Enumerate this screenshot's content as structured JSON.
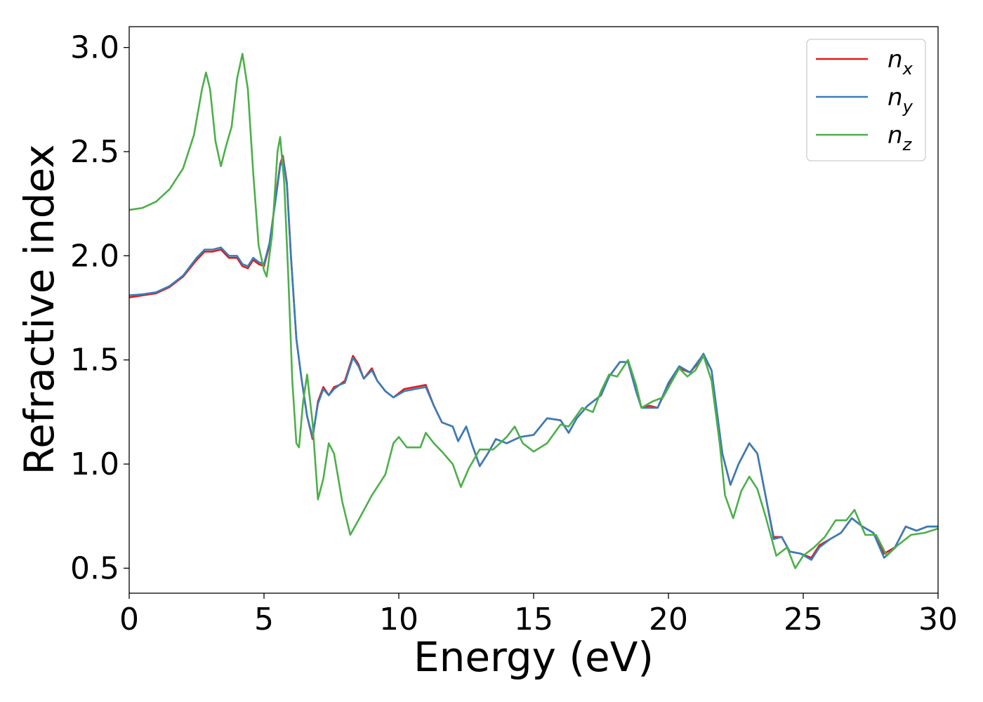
{
  "chart_data": {
    "type": "line",
    "xlabel": "Energy (eV)",
    "ylabel": "Refractive index",
    "xlim": [
      0,
      30
    ],
    "ylim": [
      0.38,
      3.1
    ],
    "x_ticks": [
      0,
      5,
      10,
      15,
      20,
      25,
      30
    ],
    "y_ticks": [
      0.5,
      1.0,
      1.5,
      2.0,
      2.5,
      3.0
    ],
    "x_tick_labels": [
      "0",
      "5",
      "10",
      "15",
      "20",
      "25",
      "30"
    ],
    "y_tick_labels": [
      "0.5",
      "1.0",
      "1.5",
      "2.0",
      "2.5",
      "3.0"
    ],
    "grid": false,
    "legend_position": "top-right",
    "series": [
      {
        "name": "n",
        "subscript": "x",
        "color": "#e41a1c",
        "points": [
          [
            0,
            1.8
          ],
          [
            0.5,
            1.81
          ],
          [
            1,
            1.82
          ],
          [
            1.5,
            1.85
          ],
          [
            2,
            1.9
          ],
          [
            2.5,
            1.98
          ],
          [
            2.8,
            2.02
          ],
          [
            3.1,
            2.02
          ],
          [
            3.4,
            2.03
          ],
          [
            3.7,
            1.99
          ],
          [
            4.0,
            1.99
          ],
          [
            4.2,
            1.95
          ],
          [
            4.4,
            1.94
          ],
          [
            4.6,
            1.98
          ],
          [
            4.8,
            1.96
          ],
          [
            5.0,
            1.95
          ],
          [
            5.2,
            2.05
          ],
          [
            5.4,
            2.25
          ],
          [
            5.6,
            2.44
          ],
          [
            5.7,
            2.48
          ],
          [
            5.85,
            2.35
          ],
          [
            6.0,
            2.0
          ],
          [
            6.2,
            1.6
          ],
          [
            6.4,
            1.4
          ],
          [
            6.6,
            1.23
          ],
          [
            6.8,
            1.12
          ],
          [
            7.0,
            1.3
          ],
          [
            7.2,
            1.37
          ],
          [
            7.4,
            1.33
          ],
          [
            7.6,
            1.37
          ],
          [
            7.8,
            1.38
          ],
          [
            8.0,
            1.4
          ],
          [
            8.3,
            1.52
          ],
          [
            8.5,
            1.48
          ],
          [
            8.7,
            1.41
          ],
          [
            9.0,
            1.46
          ],
          [
            9.2,
            1.4
          ],
          [
            9.5,
            1.35
          ],
          [
            9.8,
            1.32
          ],
          [
            10.2,
            1.36
          ],
          [
            10.6,
            1.37
          ],
          [
            11.0,
            1.38
          ],
          [
            11.3,
            1.28
          ],
          [
            11.6,
            1.2
          ],
          [
            12.0,
            1.18
          ],
          [
            12.2,
            1.11
          ],
          [
            12.5,
            1.18
          ],
          [
            12.7,
            1.1
          ],
          [
            13.0,
            0.99
          ],
          [
            13.3,
            1.05
          ],
          [
            13.6,
            1.12
          ],
          [
            14.0,
            1.1
          ],
          [
            14.5,
            1.13
          ],
          [
            15.0,
            1.14
          ],
          [
            15.5,
            1.22
          ],
          [
            16.0,
            1.21
          ],
          [
            16.3,
            1.15
          ],
          [
            16.6,
            1.22
          ],
          [
            17.0,
            1.28
          ],
          [
            17.5,
            1.33
          ],
          [
            17.8,
            1.42
          ],
          [
            18.2,
            1.49
          ],
          [
            18.5,
            1.49
          ],
          [
            18.8,
            1.35
          ],
          [
            19.0,
            1.27
          ],
          [
            19.3,
            1.28
          ],
          [
            19.6,
            1.27
          ],
          [
            20.0,
            1.38
          ],
          [
            20.4,
            1.46
          ],
          [
            20.8,
            1.44
          ],
          [
            21.2,
            1.5
          ],
          [
            21.3,
            1.52
          ],
          [
            21.6,
            1.45
          ],
          [
            21.8,
            1.25
          ],
          [
            22.0,
            1.05
          ],
          [
            22.3,
            0.9
          ],
          [
            22.6,
            1.0
          ],
          [
            23.0,
            1.1
          ],
          [
            23.3,
            1.05
          ],
          [
            23.6,
            0.85
          ],
          [
            23.9,
            0.65
          ],
          [
            24.2,
            0.65
          ],
          [
            24.5,
            0.58
          ],
          [
            24.9,
            0.57
          ],
          [
            25.3,
            0.55
          ],
          [
            25.6,
            0.61
          ],
          [
            26.0,
            0.64
          ],
          [
            26.4,
            0.67
          ],
          [
            26.8,
            0.74
          ],
          [
            27.2,
            0.7
          ],
          [
            27.6,
            0.67
          ],
          [
            28.0,
            0.57
          ],
          [
            28.4,
            0.6
          ],
          [
            28.8,
            0.7
          ],
          [
            29.2,
            0.68
          ],
          [
            29.6,
            0.7
          ],
          [
            30,
            0.7
          ]
        ]
      },
      {
        "name": "n",
        "subscript": "y",
        "color": "#377eb8",
        "points": [
          [
            0,
            1.81
          ],
          [
            0.5,
            1.815
          ],
          [
            1,
            1.825
          ],
          [
            1.5,
            1.855
          ],
          [
            2,
            1.905
          ],
          [
            2.5,
            1.99
          ],
          [
            2.8,
            2.03
          ],
          [
            3.1,
            2.03
          ],
          [
            3.4,
            2.04
          ],
          [
            3.7,
            2.0
          ],
          [
            4.0,
            2.0
          ],
          [
            4.2,
            1.96
          ],
          [
            4.4,
            1.95
          ],
          [
            4.6,
            1.99
          ],
          [
            4.8,
            1.97
          ],
          [
            5.0,
            1.96
          ],
          [
            5.2,
            2.06
          ],
          [
            5.4,
            2.24
          ],
          [
            5.6,
            2.43
          ],
          [
            5.7,
            2.47
          ],
          [
            5.85,
            2.34
          ],
          [
            6.0,
            1.99
          ],
          [
            6.2,
            1.6
          ],
          [
            6.4,
            1.4
          ],
          [
            6.6,
            1.23
          ],
          [
            6.8,
            1.13
          ],
          [
            7.0,
            1.29
          ],
          [
            7.2,
            1.36
          ],
          [
            7.4,
            1.33
          ],
          [
            7.6,
            1.36
          ],
          [
            7.8,
            1.38
          ],
          [
            8.0,
            1.39
          ],
          [
            8.3,
            1.51
          ],
          [
            8.5,
            1.47
          ],
          [
            8.7,
            1.41
          ],
          [
            9.0,
            1.45
          ],
          [
            9.2,
            1.4
          ],
          [
            9.5,
            1.35
          ],
          [
            9.8,
            1.32
          ],
          [
            10.2,
            1.35
          ],
          [
            10.6,
            1.36
          ],
          [
            11.0,
            1.37
          ],
          [
            11.3,
            1.28
          ],
          [
            11.6,
            1.2
          ],
          [
            12.0,
            1.18
          ],
          [
            12.2,
            1.11
          ],
          [
            12.5,
            1.18
          ],
          [
            12.7,
            1.1
          ],
          [
            13.0,
            0.99
          ],
          [
            13.3,
            1.05
          ],
          [
            13.6,
            1.12
          ],
          [
            14.0,
            1.1
          ],
          [
            14.5,
            1.13
          ],
          [
            15.0,
            1.14
          ],
          [
            15.5,
            1.22
          ],
          [
            16.0,
            1.21
          ],
          [
            16.3,
            1.15
          ],
          [
            16.6,
            1.22
          ],
          [
            17.0,
            1.28
          ],
          [
            17.5,
            1.33
          ],
          [
            17.8,
            1.42
          ],
          [
            18.2,
            1.49
          ],
          [
            18.5,
            1.49
          ],
          [
            18.8,
            1.35
          ],
          [
            19.0,
            1.27
          ],
          [
            19.3,
            1.27
          ],
          [
            19.6,
            1.27
          ],
          [
            20.0,
            1.39
          ],
          [
            20.4,
            1.47
          ],
          [
            20.8,
            1.44
          ],
          [
            21.2,
            1.51
          ],
          [
            21.3,
            1.53
          ],
          [
            21.6,
            1.45
          ],
          [
            21.8,
            1.25
          ],
          [
            22.0,
            1.05
          ],
          [
            22.3,
            0.9
          ],
          [
            22.6,
            1.0
          ],
          [
            23.0,
            1.1
          ],
          [
            23.3,
            1.05
          ],
          [
            23.6,
            0.85
          ],
          [
            23.9,
            0.64
          ],
          [
            24.2,
            0.65
          ],
          [
            24.5,
            0.58
          ],
          [
            24.9,
            0.57
          ],
          [
            25.3,
            0.54
          ],
          [
            25.6,
            0.6
          ],
          [
            26.0,
            0.64
          ],
          [
            26.4,
            0.67
          ],
          [
            26.8,
            0.74
          ],
          [
            27.2,
            0.7
          ],
          [
            27.6,
            0.67
          ],
          [
            28.0,
            0.55
          ],
          [
            28.4,
            0.6
          ],
          [
            28.8,
            0.7
          ],
          [
            29.2,
            0.68
          ],
          [
            29.6,
            0.7
          ],
          [
            30,
            0.7
          ]
        ]
      },
      {
        "name": "n",
        "subscript": "z",
        "color": "#4daf4a",
        "points": [
          [
            0,
            2.22
          ],
          [
            0.5,
            2.23
          ],
          [
            1,
            2.26
          ],
          [
            1.5,
            2.32
          ],
          [
            2,
            2.42
          ],
          [
            2.4,
            2.58
          ],
          [
            2.7,
            2.8
          ],
          [
            2.85,
            2.88
          ],
          [
            3.0,
            2.8
          ],
          [
            3.2,
            2.55
          ],
          [
            3.4,
            2.43
          ],
          [
            3.6,
            2.53
          ],
          [
            3.8,
            2.62
          ],
          [
            4.0,
            2.85
          ],
          [
            4.2,
            2.97
          ],
          [
            4.4,
            2.8
          ],
          [
            4.6,
            2.4
          ],
          [
            4.8,
            2.05
          ],
          [
            5.0,
            1.93
          ],
          [
            5.1,
            1.9
          ],
          [
            5.3,
            2.1
          ],
          [
            5.5,
            2.5
          ],
          [
            5.6,
            2.57
          ],
          [
            5.75,
            2.35
          ],
          [
            5.9,
            1.9
          ],
          [
            6.05,
            1.4
          ],
          [
            6.2,
            1.1
          ],
          [
            6.3,
            1.08
          ],
          [
            6.45,
            1.3
          ],
          [
            6.6,
            1.43
          ],
          [
            6.8,
            1.2
          ],
          [
            7.0,
            0.83
          ],
          [
            7.2,
            0.93
          ],
          [
            7.4,
            1.1
          ],
          [
            7.6,
            1.05
          ],
          [
            7.9,
            0.82
          ],
          [
            8.2,
            0.66
          ],
          [
            8.5,
            0.73
          ],
          [
            9.0,
            0.85
          ],
          [
            9.5,
            0.95
          ],
          [
            9.8,
            1.1
          ],
          [
            10.0,
            1.13
          ],
          [
            10.3,
            1.08
          ],
          [
            10.8,
            1.08
          ],
          [
            11.0,
            1.15
          ],
          [
            11.3,
            1.1
          ],
          [
            11.6,
            1.06
          ],
          [
            12.0,
            1.0
          ],
          [
            12.3,
            0.89
          ],
          [
            12.6,
            0.98
          ],
          [
            13.0,
            1.07
          ],
          [
            13.5,
            1.07
          ],
          [
            14.0,
            1.13
          ],
          [
            14.3,
            1.18
          ],
          [
            14.6,
            1.1
          ],
          [
            15.0,
            1.06
          ],
          [
            15.5,
            1.1
          ],
          [
            16.0,
            1.19
          ],
          [
            16.3,
            1.18
          ],
          [
            16.8,
            1.27
          ],
          [
            17.2,
            1.25
          ],
          [
            17.5,
            1.35
          ],
          [
            17.8,
            1.43
          ],
          [
            18.1,
            1.42
          ],
          [
            18.5,
            1.5
          ],
          [
            18.8,
            1.38
          ],
          [
            19.0,
            1.27
          ],
          [
            19.4,
            1.3
          ],
          [
            19.8,
            1.32
          ],
          [
            20.1,
            1.39
          ],
          [
            20.4,
            1.46
          ],
          [
            20.7,
            1.42
          ],
          [
            21.0,
            1.45
          ],
          [
            21.3,
            1.52
          ],
          [
            21.6,
            1.4
          ],
          [
            21.9,
            1.1
          ],
          [
            22.1,
            0.85
          ],
          [
            22.4,
            0.74
          ],
          [
            22.7,
            0.87
          ],
          [
            23.0,
            0.94
          ],
          [
            23.3,
            0.88
          ],
          [
            23.6,
            0.75
          ],
          [
            24.0,
            0.56
          ],
          [
            24.4,
            0.6
          ],
          [
            24.7,
            0.5
          ],
          [
            25.0,
            0.56
          ],
          [
            25.4,
            0.6
          ],
          [
            25.8,
            0.65
          ],
          [
            26.2,
            0.73
          ],
          [
            26.6,
            0.73
          ],
          [
            26.9,
            0.78
          ],
          [
            27.3,
            0.66
          ],
          [
            27.7,
            0.66
          ],
          [
            28.1,
            0.56
          ],
          [
            28.5,
            0.61
          ],
          [
            29.0,
            0.66
          ],
          [
            29.5,
            0.67
          ],
          [
            30,
            0.69
          ]
        ]
      }
    ]
  }
}
